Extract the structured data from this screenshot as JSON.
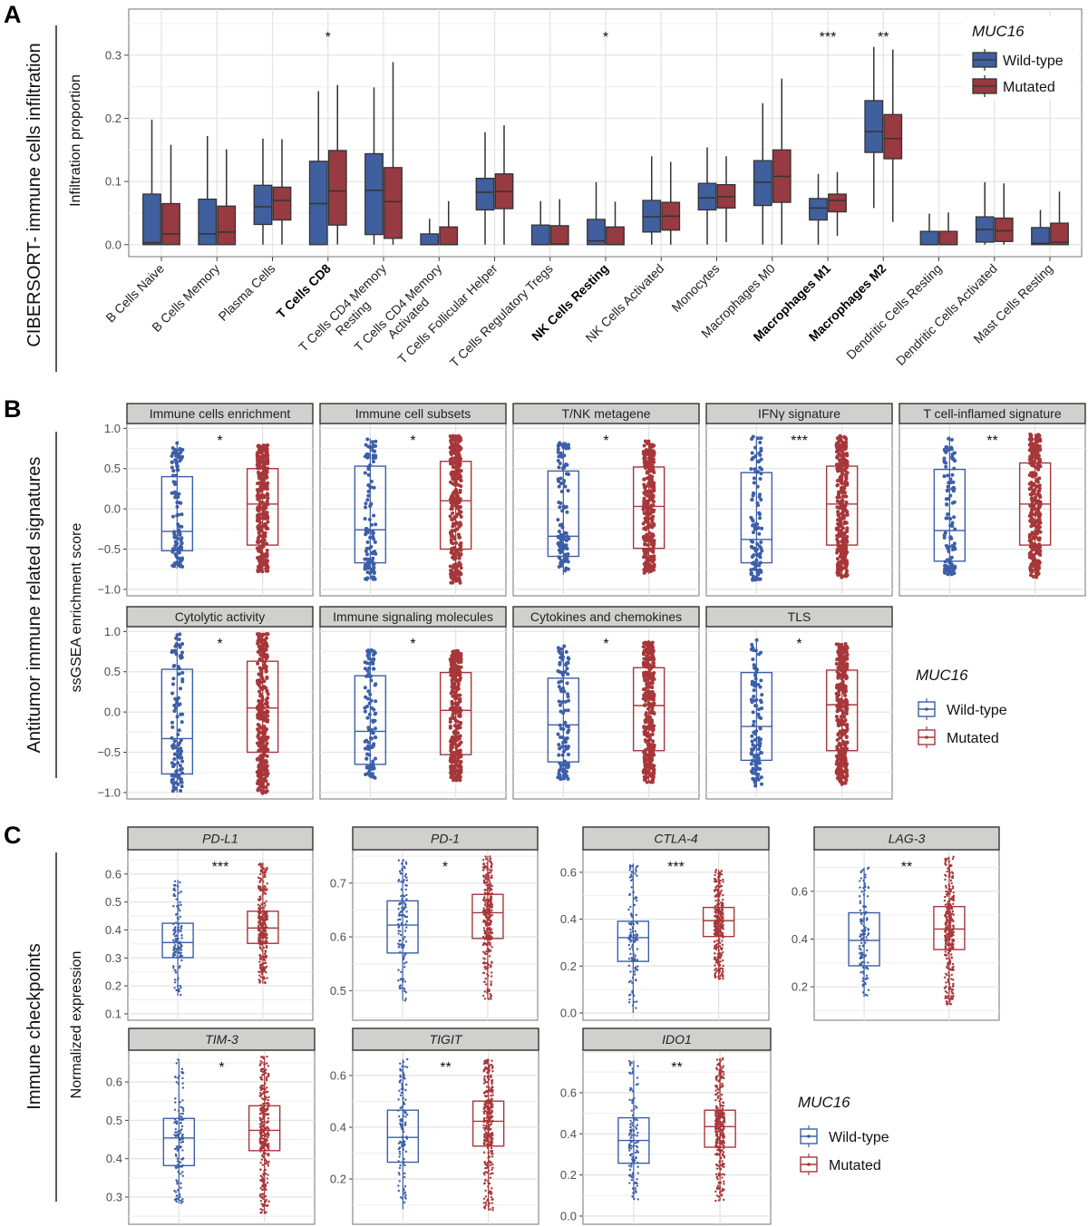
{
  "panel_labels": {
    "a": "A",
    "b": "B",
    "c": "C"
  },
  "colors": {
    "wild_type_fill": "#3F5F9E",
    "mutated_fill": "#973A41",
    "wild_type_line": "#3C5FA8",
    "mutated_line": "#A7373A",
    "strip_fill": "#D0D0CD",
    "grid": "#E4E4E4"
  },
  "legend": {
    "title": "MUC16",
    "items": [
      "Wild-type",
      "Mutated"
    ]
  },
  "chart_data": [
    {
      "type": "box",
      "group_label": "CIBERSORT- immune cells infiltration",
      "ylabel": "Infiltration proportion",
      "xlabel": "",
      "ylim": [
        -0.019,
        0.373
      ],
      "yticks": [
        0,
        0.1,
        0.2,
        0.3
      ],
      "ytick_labels": [
        "0.0",
        "0.1",
        "0.2",
        "0.3"
      ],
      "grid": true,
      "legend_position": "top-right",
      "categories": [
        "B Cells  Naive",
        "B Cells Memory",
        "Plasma Cells",
        "T Cells CD8",
        "T Cells CD4 Memory\nResting",
        "T Cells CD4 Memory\nActivated",
        "T Cells Follicular Helper",
        "T Cells Regulatory Tregs",
        "NK Cells Resting",
        "NK Cells Activated",
        "Monocytes",
        "Macrophages M0",
        "Macrophages M1",
        "Macrophages M2",
        "Dendritic Cells Resting",
        "Dendritic Cells Activated",
        "Mast Cells Resting"
      ],
      "emphasized": [
        false,
        false,
        false,
        true,
        false,
        false,
        false,
        false,
        true,
        false,
        false,
        false,
        true,
        true,
        false,
        false,
        false
      ],
      "significance": [
        "",
        "",
        "",
        "*",
        "",
        "",
        "",
        "",
        "*",
        "",
        "",
        "",
        "***",
        "**",
        "",
        "",
        ""
      ],
      "box_stats_order": [
        "min",
        "q1",
        "median",
        "q3",
        "max"
      ],
      "series": [
        {
          "name": "Wild-type",
          "boxes": [
            [
              0,
              0,
              0.003,
              0.08,
              0.198
            ],
            [
              0,
              0,
              0.017,
              0.072,
              0.172
            ],
            [
              0,
              0.032,
              0.06,
              0.094,
              0.168
            ],
            [
              0,
              0,
              0.065,
              0.132,
              0.243
            ],
            [
              0,
              0.016,
              0.086,
              0.144,
              0.249
            ],
            [
              0,
              0,
              0,
              0.017,
              0.041
            ],
            [
              0,
              0.055,
              0.083,
              0.105,
              0.178
            ],
            [
              0,
              0,
              0,
              0.031,
              0.069
            ],
            [
              0,
              0,
              0.006,
              0.04,
              0.099
            ],
            [
              0,
              0.02,
              0.044,
              0.07,
              0.14
            ],
            [
              0,
              0.055,
              0.074,
              0.097,
              0.154
            ],
            [
              0,
              0.062,
              0.099,
              0.133,
              0.224
            ],
            [
              0,
              0.039,
              0.058,
              0.073,
              0.112
            ],
            [
              0.058,
              0.146,
              0.179,
              0.228,
              0.313
            ],
            [
              0,
              0,
              0,
              0.021,
              0.049
            ],
            [
              0,
              0.004,
              0.024,
              0.044,
              0.099
            ],
            [
              0,
              0,
              0.002,
              0.027,
              0.055
            ]
          ]
        },
        {
          "name": "Mutated",
          "boxes": [
            [
              0,
              0,
              0.017,
              0.065,
              0.158
            ],
            [
              0,
              0,
              0.02,
              0.061,
              0.151
            ],
            [
              0,
              0.039,
              0.07,
              0.091,
              0.167
            ],
            [
              0,
              0.031,
              0.085,
              0.149,
              0.253
            ],
            [
              0,
              0.01,
              0.068,
              0.122,
              0.289
            ],
            [
              0,
              0,
              0,
              0.028,
              0.069
            ],
            [
              0,
              0.057,
              0.084,
              0.112,
              0.189
            ],
            [
              0,
              0,
              0.001,
              0.03,
              0.072
            ],
            [
              0,
              0,
              0,
              0.028,
              0.068
            ],
            [
              0,
              0.023,
              0.045,
              0.067,
              0.131
            ],
            [
              0.004,
              0.058,
              0.076,
              0.095,
              0.14
            ],
            [
              0,
              0.067,
              0.108,
              0.15,
              0.263
            ],
            [
              0.014,
              0.052,
              0.07,
              0.08,
              0.115
            ],
            [
              0.036,
              0.136,
              0.168,
              0.206,
              0.309
            ],
            [
              0,
              0,
              0,
              0.021,
              0.051
            ],
            [
              0,
              0.005,
              0.022,
              0.042,
              0.097
            ],
            [
              0,
              0,
              0.004,
              0.034,
              0.084
            ]
          ]
        }
      ]
    },
    {
      "type": "box",
      "group_label": "Antitumor immune related signatures",
      "ylabel": "ssGSEA enrichment score",
      "ylim": [
        -1.08,
        1.06
      ],
      "yticks": [
        1.0,
        0.5,
        0.0,
        -0.5,
        -1.0
      ],
      "ytick_labels": [
        "1.0",
        "0.5",
        "0.0",
        "−0.5",
        "−1.0"
      ],
      "grid": true,
      "legend_position": "right",
      "box_stats_order": [
        "min",
        "q1",
        "median",
        "q3",
        "max"
      ],
      "facets": [
        {
          "title": "Immune cells enrichment",
          "significance": "*",
          "wild_type": [
            -0.74,
            -0.52,
            -0.28,
            0.4,
            0.82
          ],
          "mutated": [
            -0.78,
            -0.45,
            0.06,
            0.5,
            0.8
          ]
        },
        {
          "title": "Immune cell subsets",
          "significance": "*",
          "wild_type": [
            -0.88,
            -0.67,
            -0.26,
            0.53,
            0.87
          ],
          "mutated": [
            -0.92,
            -0.5,
            0.1,
            0.59,
            0.91
          ]
        },
        {
          "title": "T/NK metagene",
          "significance": "*",
          "wild_type": [
            -0.82,
            -0.59,
            -0.34,
            0.47,
            0.83
          ],
          "mutated": [
            -0.81,
            -0.49,
            0.03,
            0.52,
            0.84
          ]
        },
        {
          "title": "IFNγ signature",
          "significance": "***",
          "wild_type": [
            -0.89,
            -0.67,
            -0.38,
            0.45,
            0.9
          ],
          "mutated": [
            -0.85,
            -0.45,
            0.06,
            0.53,
            0.91
          ]
        },
        {
          "title": "T cell-inflamed signature",
          "significance": "**",
          "wild_type": [
            -0.82,
            -0.65,
            -0.27,
            0.49,
            0.9
          ],
          "mutated": [
            -0.85,
            -0.45,
            0.06,
            0.57,
            0.93
          ]
        },
        {
          "title": "Cytolytic activity",
          "significance": "*",
          "wild_type": [
            -1.0,
            -0.77,
            -0.33,
            0.53,
            0.97
          ],
          "mutated": [
            -1.01,
            -0.5,
            0.05,
            0.63,
            0.98
          ]
        },
        {
          "title": "Immune signaling molecules",
          "significance": "*",
          "wild_type": [
            -0.82,
            -0.65,
            -0.24,
            0.45,
            0.77
          ],
          "mutated": [
            -0.85,
            -0.53,
            0.02,
            0.49,
            0.76
          ]
        },
        {
          "title": "Cytokines and chemokines",
          "significance": "*",
          "wild_type": [
            -0.84,
            -0.62,
            -0.16,
            0.42,
            0.84
          ],
          "mutated": [
            -0.88,
            -0.48,
            0.08,
            0.55,
            0.87
          ]
        },
        {
          "title": "TLS",
          "significance": "*",
          "wild_type": [
            -0.92,
            -0.6,
            -0.18,
            0.49,
            0.91
          ],
          "mutated": [
            -0.9,
            -0.48,
            0.09,
            0.52,
            0.85
          ]
        }
      ]
    },
    {
      "type": "box",
      "group_label": "Immune checkpoints",
      "ylabel": "Normalized expression",
      "grid": true,
      "legend_position": "right",
      "box_stats_order": [
        "min",
        "q1",
        "median",
        "q3",
        "max"
      ],
      "facets": [
        {
          "title": "PD-L1",
          "significance": "***",
          "ylim": [
            0.077,
            0.687
          ],
          "yticks": [
            0.1,
            0.2,
            0.3,
            0.4,
            0.5,
            0.6
          ],
          "ytick_labels": [
            "0.1",
            "0.2",
            "0.3",
            "0.4",
            "0.5",
            "0.6"
          ],
          "wild_type": [
            0.164,
            0.301,
            0.355,
            0.424,
            0.58
          ],
          "mutated": [
            0.207,
            0.352,
            0.407,
            0.467,
            0.64
          ]
        },
        {
          "title": "PD-1",
          "significance": "*",
          "ylim": [
            0.445,
            0.762
          ],
          "yticks": [
            0.5,
            0.6,
            0.7
          ],
          "ytick_labels": [
            "0.5",
            "0.6",
            "0.7"
          ],
          "wild_type": [
            0.481,
            0.57,
            0.622,
            0.667,
            0.743
          ],
          "mutated": [
            0.484,
            0.597,
            0.645,
            0.679,
            0.75
          ]
        },
        {
          "title": "CTLA-4",
          "significance": "***",
          "ylim": [
            -0.031,
            0.696
          ],
          "yticks": [
            0.0,
            0.2,
            0.4,
            0.6
          ],
          "ytick_labels": [
            "0.0",
            "0.2",
            "0.4",
            "0.6"
          ],
          "wild_type": [
            0.0,
            0.22,
            0.321,
            0.391,
            0.637
          ],
          "mutated": [
            0.142,
            0.326,
            0.393,
            0.45,
            0.611
          ]
        },
        {
          "title": "LAG-3",
          "significance": "**",
          "ylim": [
            0.06,
            0.774
          ],
          "yticks": [
            0.2,
            0.4,
            0.6
          ],
          "ytick_labels": [
            "0.2",
            "0.4",
            "0.6"
          ],
          "wild_type": [
            0.157,
            0.288,
            0.394,
            0.51,
            0.7
          ],
          "mutated": [
            0.126,
            0.356,
            0.442,
            0.536,
            0.745
          ]
        },
        {
          "title": "TIM-3",
          "significance": "*",
          "ylim": [
            0.229,
            0.683
          ],
          "yticks": [
            0.3,
            0.4,
            0.5,
            0.6
          ],
          "ytick_labels": [
            "0.3",
            "0.4",
            "0.5",
            "0.6"
          ],
          "wild_type": [
            0.283,
            0.382,
            0.454,
            0.505,
            0.659
          ],
          "mutated": [
            0.256,
            0.421,
            0.474,
            0.538,
            0.667
          ]
        },
        {
          "title": "TIGIT",
          "significance": "**",
          "ylim": [
            0.025,
            0.698
          ],
          "yticks": [
            0.2,
            0.4,
            0.6
          ],
          "ytick_labels": [
            "0.2",
            "0.4",
            "0.6"
          ],
          "wild_type": [
            0.083,
            0.265,
            0.361,
            0.466,
            0.663
          ],
          "mutated": [
            0.077,
            0.327,
            0.423,
            0.501,
            0.661
          ]
        },
        {
          "title": "IDO1",
          "significance": "**",
          "ylim": [
            -0.04,
            0.807
          ],
          "yticks": [
            0.0,
            0.2,
            0.4,
            0.6
          ],
          "ytick_labels": [
            "0.0",
            "0.2",
            "0.4",
            "0.6"
          ],
          "wild_type": [
            0.081,
            0.257,
            0.368,
            0.478,
            0.757
          ],
          "mutated": [
            0.074,
            0.335,
            0.435,
            0.515,
            0.769
          ]
        }
      ]
    }
  ]
}
